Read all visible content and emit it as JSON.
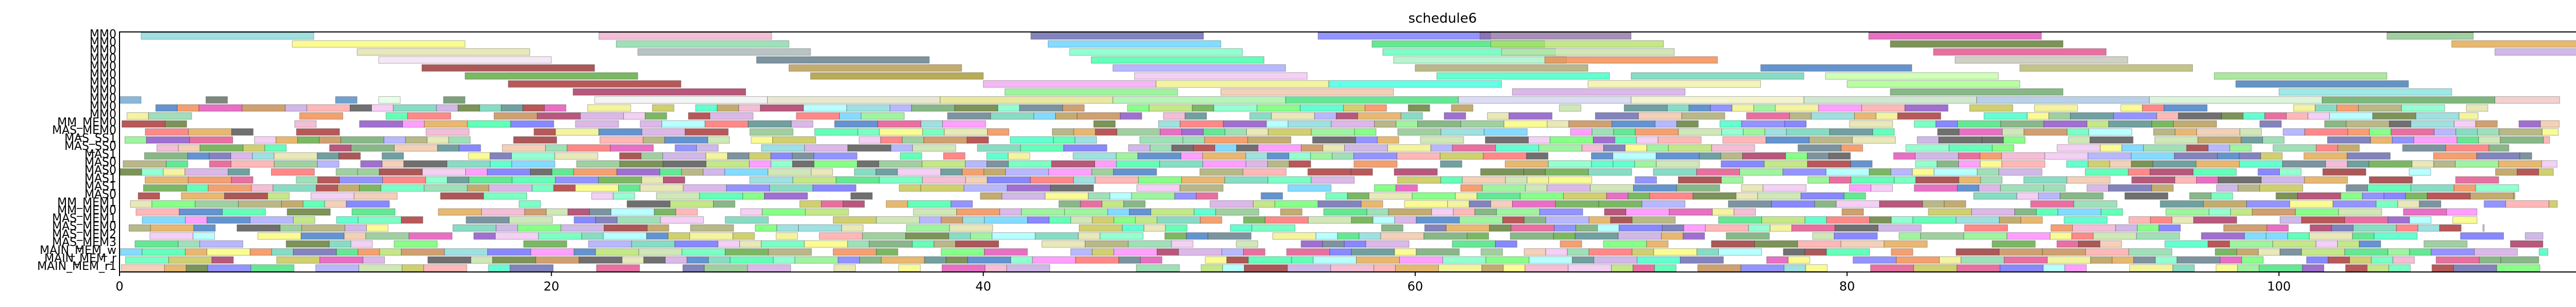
{
  "chart_data": {
    "type": "gantt",
    "title": "schedule6",
    "xlabel": "",
    "ylabel": "",
    "xlim": [
      0,
      117
    ],
    "x_ticks": [
      0,
      20,
      40,
      60,
      80,
      100
    ],
    "x_tick_labels": [
      "0",
      "20",
      "40",
      "60",
      "80",
      "100"
    ],
    "grid": false,
    "rows": [
      "MM0",
      "MM0",
      "MM0",
      "MM0",
      "MM0",
      "MM0",
      "MM0",
      "MM0",
      "MM0",
      "MM0",
      "MM0",
      "MM_MEM0",
      "MAS_MEM0",
      "MAS_SS1",
      "MAS_SS0",
      "MAS1",
      "MAS0",
      "MAS0",
      "MAS1",
      "MAS1",
      "MAS0",
      "MM_MEM1",
      "MM_MEM0",
      "MAS_MEM1",
      "MAS_MEM0",
      "MAS_MEM2",
      "MAS_MEM3",
      "MAIN_MEM_w",
      "MAIN_MEM_r",
      "MAIN_MEM_r1"
    ],
    "tasks": [
      {
        "row": 0,
        "start": 1.0,
        "end": 9.0,
        "color": "#7fd6d6"
      },
      {
        "row": 0,
        "start": 22.2,
        "end": 30.2,
        "color": "#f0a8c8"
      },
      {
        "row": 0,
        "start": 42.2,
        "end": 50.2,
        "color": "#5a5aa8"
      },
      {
        "row": 0,
        "start": 55.5,
        "end": 63.5,
        "color": "#7070ff"
      },
      {
        "row": 0,
        "start": 63.0,
        "end": 70.0,
        "color": "#8a6aa0"
      },
      {
        "row": 0,
        "start": 81.0,
        "end": 89.0,
        "color": "#e040b0"
      },
      {
        "row": 0,
        "start": 105.0,
        "end": 109.0,
        "color": "#80c080"
      },
      {
        "row": 1,
        "start": 8.0,
        "end": 16.0,
        "color": "#fafa70"
      },
      {
        "row": 1,
        "start": 23.0,
        "end": 31.0,
        "color": "#7fd6a0"
      },
      {
        "row": 1,
        "start": 43.0,
        "end": 51.0,
        "color": "#5ad0ff"
      },
      {
        "row": 1,
        "start": 58.0,
        "end": 66.0,
        "color": "#30e070"
      },
      {
        "row": 1,
        "start": 63.5,
        "end": 71.5,
        "color": "#b0e060"
      },
      {
        "row": 1,
        "start": 82.0,
        "end": 90.0,
        "color": "#507020"
      },
      {
        "row": 1,
        "start": 108.0,
        "end": 116.0,
        "color": "#e0a040"
      },
      {
        "row": 2,
        "start": 11.0,
        "end": 19.0,
        "color": "#e0e0a0"
      },
      {
        "row": 2,
        "start": 24.0,
        "end": 32.0,
        "color": "#a0b0b0"
      },
      {
        "row": 2,
        "start": 44.0,
        "end": 52.0,
        "color": "#70ffc0"
      },
      {
        "row": 2,
        "start": 58.5,
        "end": 66.5,
        "color": "#50ffb0"
      },
      {
        "row": 2,
        "start": 64.0,
        "end": 72.0,
        "color": "#c0e0a0"
      },
      {
        "row": 2,
        "start": 84.0,
        "end": 92.0,
        "color": "#e04080"
      },
      {
        "row": 2,
        "start": 110.0,
        "end": 118.0,
        "color": "#c0a0e0"
      },
      {
        "row": 3,
        "start": 12.0,
        "end": 20.0,
        "color": "#f0e0f0"
      },
      {
        "row": 3,
        "start": 29.5,
        "end": 37.5,
        "color": "#507080"
      },
      {
        "row": 3,
        "start": 45.0,
        "end": 53.0,
        "color": "#30ffa0"
      },
      {
        "row": 3,
        "start": 59.0,
        "end": 67.0,
        "color": "#a0f0c0"
      },
      {
        "row": 3,
        "start": 66.0,
        "end": 74.0,
        "color": "#f08040"
      },
      {
        "row": 3,
        "start": 85.0,
        "end": 93.0,
        "color": "#c0c0b0"
      },
      {
        "row": 4,
        "start": 14.0,
        "end": 22.0,
        "color": "#902020"
      },
      {
        "row": 4,
        "start": 31.0,
        "end": 39.0,
        "color": "#b09040"
      },
      {
        "row": 4,
        "start": 46.0,
        "end": 54.0,
        "color": "#a0a0ff"
      },
      {
        "row": 4,
        "start": 60.0,
        "end": 68.0,
        "color": "#a0a060"
      },
      {
        "row": 4,
        "start": 76.0,
        "end": 83.0,
        "color": "#3070c0"
      },
      {
        "row": 4,
        "start": 88.0,
        "end": 96.0,
        "color": "#b0b060"
      },
      {
        "row": 5,
        "start": 16.0,
        "end": 24.0,
        "color": "#50a030"
      },
      {
        "row": 5,
        "start": 32.0,
        "end": 40.0,
        "color": "#a09020"
      },
      {
        "row": 5,
        "start": 47.0,
        "end": 55.0,
        "color": "#f0c0f0"
      },
      {
        "row": 5,
        "start": 61.0,
        "end": 69.0,
        "color": "#30ffc0"
      },
      {
        "row": 5,
        "start": 70.0,
        "end": 78.0,
        "color": "#60d0b0"
      },
      {
        "row": 5,
        "start": 79.0,
        "end": 87.0,
        "color": "#c0ffa0"
      },
      {
        "row": 5,
        "start": 97.0,
        "end": 105.0,
        "color": "#90e080"
      },
      {
        "row": 6,
        "start": 18.0,
        "end": 26.0,
        "color": "#a02020"
      },
      {
        "row": 6,
        "start": 40.0,
        "end": 48.0,
        "color": "#f0a0f0"
      },
      {
        "row": 6,
        "start": 48.0,
        "end": 56.0,
        "color": "#f0f080"
      },
      {
        "row": 6,
        "start": 56.0,
        "end": 64.0,
        "color": "#30ffe0"
      },
      {
        "row": 6,
        "start": 68.0,
        "end": 76.0,
        "color": "#f0f0a0"
      },
      {
        "row": 6,
        "start": 80.0,
        "end": 88.0,
        "color": "#a0ff80"
      },
      {
        "row": 6,
        "start": 98.0,
        "end": 106.0,
        "color": "#3070b0"
      },
      {
        "row": 7,
        "start": 21.0,
        "end": 29.0,
        "color": "#a02050"
      },
      {
        "row": 7,
        "start": 41.0,
        "end": 49.0,
        "color": "#80f080"
      },
      {
        "row": 7,
        "start": 51.0,
        "end": 59.0,
        "color": "#f0c0a0"
      },
      {
        "row": 7,
        "start": 64.5,
        "end": 72.5,
        "color": "#d0a0e0"
      },
      {
        "row": 7,
        "start": 82.0,
        "end": 90.0,
        "color": "#60a060"
      },
      {
        "row": 7,
        "start": 100.0,
        "end": 108.0,
        "color": "#80e0e0"
      },
      {
        "row": 8,
        "start": 0.0,
        "end": 1.0,
        "color": "#60a0d0"
      },
      {
        "row": 8,
        "start": 4.0,
        "end": 5.0,
        "color": "#506050"
      },
      {
        "row": 8,
        "start": 10.0,
        "end": 11.0,
        "color": "#4080c0"
      },
      {
        "row": 8,
        "start": 12.0,
        "end": 13.0,
        "color": "#e0ffe0"
      },
      {
        "row": 8,
        "start": 15.0,
        "end": 16.0,
        "color": "#508050"
      },
      {
        "row": 8,
        "start": 22.0,
        "end": 30.0,
        "color": "#f0f0f0"
      },
      {
        "row": 8,
        "start": 30.0,
        "end": 38.0,
        "color": "#e0e0c0"
      },
      {
        "row": 8,
        "start": 38.0,
        "end": 46.0,
        "color": "#e0e080"
      },
      {
        "row": 8,
        "start": 46.0,
        "end": 54.0,
        "color": "#a0f0a0"
      },
      {
        "row": 8,
        "start": 54.0,
        "end": 62.0,
        "color": "#30e070"
      },
      {
        "row": 8,
        "start": 62.0,
        "end": 70.0,
        "color": "#d0d0f0"
      },
      {
        "row": 8,
        "start": 70.0,
        "end": 78.0,
        "color": "#f0f0c0"
      },
      {
        "row": 8,
        "start": 78.0,
        "end": 86.0,
        "color": "#c0e0c0"
      },
      {
        "row": 8,
        "start": 86.0,
        "end": 94.0,
        "color": "#a0c0e0"
      },
      {
        "row": 8,
        "start": 94.0,
        "end": 102.0,
        "color": "#d0f0d0"
      },
      {
        "row": 8,
        "start": 102.0,
        "end": 110.0,
        "color": "#50a050"
      },
      {
        "row": 8,
        "start": 110.0,
        "end": 113.0,
        "color": "#f0c0c0"
      }
    ],
    "dense_band": {
      "row_from": 9,
      "row_to": 29,
      "seed": 6,
      "x_from": 0,
      "x_to": 113,
      "palette": [
        "#7fd6d6",
        "#f0a8c8",
        "#5a5aa8",
        "#7070ff",
        "#e040b0",
        "#80c080",
        "#fafa70",
        "#7fd6a0",
        "#5ad0ff",
        "#30e070",
        "#b0e060",
        "#507020",
        "#e0a040",
        "#e0e0a0",
        "#70ffc0",
        "#50ffb0",
        "#c0e0a0",
        "#e04080",
        "#c0a0e0",
        "#507080",
        "#30ffa0",
        "#f08040",
        "#902020",
        "#b09040",
        "#a0a0ff",
        "#a0a060",
        "#3070c0",
        "#50a030",
        "#f0c0f0",
        "#30ffc0",
        "#60d0b0",
        "#a02020",
        "#f0f080",
        "#a02050",
        "#80f080",
        "#f0c0a0",
        "#d0a0e0",
        "#60a060",
        "#404040",
        "#ff6060",
        "#60ff60",
        "#6060ff",
        "#ffa0a0",
        "#a0ffff",
        "#ff80ff",
        "#c08040",
        "#408080",
        "#8040c0",
        "#c0c040"
      ]
    }
  }
}
